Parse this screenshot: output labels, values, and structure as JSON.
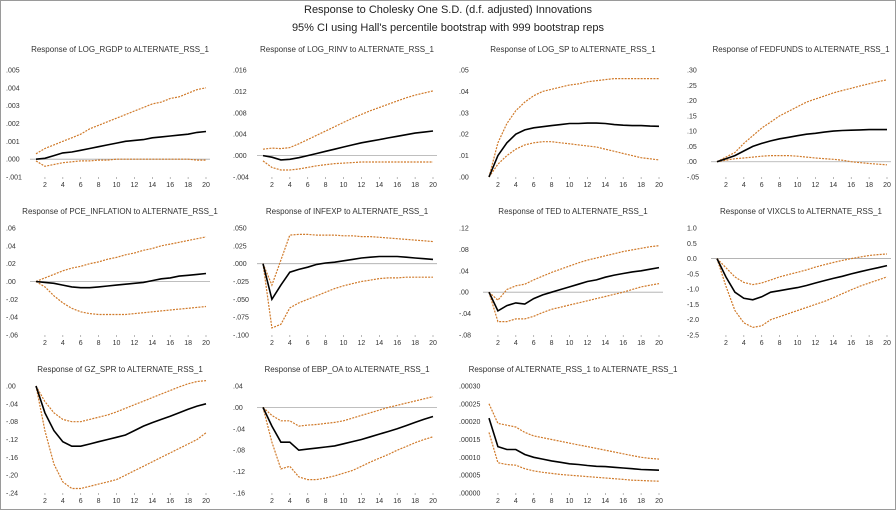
{
  "header": {
    "title": "Response to Cholesky One S.D. (d.f. adjusted) Innovations",
    "subtitle": "95% CI using Hall's percentile bootstrap with 999 bootstrap reps"
  },
  "colors": {
    "response": "#000000",
    "bands": "#d07a2a",
    "zero_line": "#aaaaaa",
    "text": "#333333"
  },
  "chart_data": [
    {
      "type": "line",
      "title": "Response of LOG_RGDP to ALTERNATE_RSS_1",
      "ylim": [
        -0.001,
        0.005
      ],
      "yticks": [
        ".005",
        ".004",
        ".003",
        ".002",
        ".001",
        ".000",
        "-.001"
      ],
      "ytick_values": [
        0.005,
        0.004,
        0.003,
        0.002,
        0.001,
        0.0,
        -0.001
      ],
      "xticks": [
        "2",
        "4",
        "6",
        "8",
        "10",
        "12",
        "14",
        "16",
        "18",
        "20"
      ],
      "response": [
        0.0,
        5e-05,
        0.0002,
        0.00035,
        0.0004,
        0.0005,
        0.0006,
        0.0007,
        0.0008,
        0.0009,
        0.001,
        0.00105,
        0.0011,
        0.0012,
        0.00125,
        0.0013,
        0.00135,
        0.0014,
        0.0015,
        0.00155
      ],
      "upper": [
        0.0003,
        0.0006,
        0.0008,
        0.001,
        0.0012,
        0.0014,
        0.0017,
        0.0019,
        0.0021,
        0.0023,
        0.0025,
        0.0027,
        0.0029,
        0.0031,
        0.0032,
        0.0034,
        0.0035,
        0.0037,
        0.0039,
        0.004
      ],
      "lower": [
        -0.0001,
        -0.0004,
        -0.0003,
        -0.0002,
        -0.00015,
        -0.0001,
        -0.0001,
        -5e-05,
        -5e-05,
        0.0,
        0.0,
        0.0,
        0.0,
        0.0,
        0.0,
        0.0,
        0.0,
        0.0,
        -5e-05,
        -5e-05
      ]
    },
    {
      "type": "line",
      "title": "Response of LOG_RINV to ALTERNATE_RSS_1",
      "ylim": [
        -0.004,
        0.016
      ],
      "yticks": [
        ".016",
        ".012",
        ".008",
        ".004",
        ".000",
        "-.004"
      ],
      "ytick_values": [
        0.016,
        0.012,
        0.008,
        0.004,
        0.0,
        -0.004
      ],
      "xticks": [
        "2",
        "4",
        "6",
        "8",
        "10",
        "12",
        "14",
        "16",
        "18",
        "20"
      ],
      "response": [
        0.0,
        -0.0003,
        -0.0008,
        -0.0007,
        -0.0004,
        0.0,
        0.0004,
        0.0008,
        0.0012,
        0.0016,
        0.002,
        0.0024,
        0.0027,
        0.003,
        0.0033,
        0.0036,
        0.0039,
        0.0042,
        0.0044,
        0.0046
      ],
      "upper": [
        0.0012,
        0.0014,
        0.0013,
        0.0015,
        0.0022,
        0.003,
        0.0038,
        0.0046,
        0.0054,
        0.0062,
        0.007,
        0.0077,
        0.0084,
        0.009,
        0.0096,
        0.0102,
        0.0108,
        0.0113,
        0.0117,
        0.0121
      ],
      "lower": [
        -0.001,
        -0.0022,
        -0.0027,
        -0.0027,
        -0.0025,
        -0.0022,
        -0.0019,
        -0.0017,
        -0.0015,
        -0.0014,
        -0.0013,
        -0.0012,
        -0.0012,
        -0.0012,
        -0.0012,
        -0.0012,
        -0.0012,
        -0.0012,
        -0.0012,
        -0.0012
      ]
    },
    {
      "type": "line",
      "title": "Response of LOG_SP to ALTERNATE_RSS_1",
      "ylim": [
        0.0,
        0.05
      ],
      "yticks": [
        ".05",
        ".04",
        ".03",
        ".02",
        ".01",
        ".00"
      ],
      "ytick_values": [
        0.05,
        0.04,
        0.03,
        0.02,
        0.01,
        0.0
      ],
      "xticks": [
        "2",
        "4",
        "6",
        "8",
        "10",
        "12",
        "14",
        "16",
        "18",
        "20"
      ],
      "response": [
        0.0,
        0.01,
        0.016,
        0.02,
        0.022,
        0.023,
        0.0235,
        0.024,
        0.0245,
        0.025,
        0.025,
        0.0252,
        0.0252,
        0.025,
        0.0245,
        0.0242,
        0.024,
        0.024,
        0.0238,
        0.0237
      ],
      "upper": [
        0.0,
        0.016,
        0.025,
        0.031,
        0.035,
        0.038,
        0.04,
        0.041,
        0.042,
        0.043,
        0.0435,
        0.0445,
        0.045,
        0.0455,
        0.046,
        0.046,
        0.046,
        0.046,
        0.046,
        0.046
      ],
      "lower": [
        0.0,
        0.006,
        0.01,
        0.013,
        0.015,
        0.016,
        0.0165,
        0.0165,
        0.016,
        0.0155,
        0.015,
        0.0145,
        0.014,
        0.013,
        0.012,
        0.011,
        0.01,
        0.009,
        0.0085,
        0.008
      ]
    },
    {
      "type": "line",
      "title": "Response of FEDFUNDS to ALTERNATE_RSS_1",
      "ylim": [
        -0.05,
        0.3
      ],
      "yticks": [
        ".30",
        ".25",
        ".20",
        ".15",
        ".10",
        ".05",
        ".00",
        "-.05"
      ],
      "ytick_values": [
        0.3,
        0.25,
        0.2,
        0.15,
        0.1,
        0.05,
        0.0,
        -0.05
      ],
      "xticks": [
        "2",
        "4",
        "6",
        "8",
        "10",
        "12",
        "14",
        "16",
        "18",
        "20"
      ],
      "response": [
        0.0,
        0.01,
        0.02,
        0.035,
        0.05,
        0.06,
        0.068,
        0.075,
        0.08,
        0.085,
        0.09,
        0.093,
        0.097,
        0.1,
        0.102,
        0.103,
        0.104,
        0.105,
        0.105,
        0.105
      ],
      "upper": [
        0.0,
        0.015,
        0.03,
        0.06,
        0.085,
        0.11,
        0.13,
        0.15,
        0.165,
        0.18,
        0.195,
        0.205,
        0.215,
        0.225,
        0.233,
        0.24,
        0.248,
        0.255,
        0.262,
        0.268
      ],
      "lower": [
        0.0,
        0.005,
        0.01,
        0.012,
        0.015,
        0.018,
        0.02,
        0.02,
        0.02,
        0.018,
        0.015,
        0.012,
        0.01,
        0.008,
        0.005,
        0.0,
        -0.003,
        -0.006,
        -0.008,
        -0.01
      ]
    },
    {
      "type": "line",
      "title": "Response of PCE_INFLATION to ALTERNATE_RSS_1",
      "ylim": [
        -0.06,
        0.06
      ],
      "yticks": [
        ".06",
        ".04",
        ".02",
        ".00",
        "-.02",
        "-.04",
        "-.06"
      ],
      "ytick_values": [
        0.06,
        0.04,
        0.02,
        0.0,
        -0.02,
        -0.04,
        -0.06
      ],
      "xticks": [
        "2",
        "4",
        "6",
        "8",
        "10",
        "12",
        "14",
        "16",
        "18",
        "20"
      ],
      "response": [
        0.0,
        -0.001,
        -0.002,
        -0.004,
        -0.006,
        -0.007,
        -0.007,
        -0.006,
        -0.005,
        -0.004,
        -0.003,
        -0.002,
        -0.001,
        0.001,
        0.003,
        0.004,
        0.006,
        0.007,
        0.008,
        0.009
      ],
      "upper": [
        0.0,
        0.004,
        0.008,
        0.012,
        0.015,
        0.017,
        0.02,
        0.022,
        0.025,
        0.027,
        0.03,
        0.032,
        0.035,
        0.037,
        0.04,
        0.042,
        0.044,
        0.046,
        0.048,
        0.05
      ],
      "lower": [
        0.0,
        -0.006,
        -0.016,
        -0.024,
        -0.03,
        -0.034,
        -0.036,
        -0.037,
        -0.037,
        -0.037,
        -0.037,
        -0.036,
        -0.035,
        -0.034,
        -0.033,
        -0.032,
        -0.031,
        -0.03,
        -0.029,
        -0.028
      ]
    },
    {
      "type": "line",
      "title": "Response of INFEXP to ALTERNATE_RSS_1",
      "ylim": [
        -0.1,
        0.05
      ],
      "yticks": [
        ".050",
        ".025",
        ".000",
        "-.025",
        "-.050",
        "-.075",
        "-.100"
      ],
      "ytick_values": [
        0.05,
        0.025,
        0.0,
        -0.025,
        -0.05,
        -0.075,
        -0.1
      ],
      "xticks": [
        "2",
        "4",
        "6",
        "8",
        "10",
        "12",
        "14",
        "16",
        "18",
        "20"
      ],
      "response": [
        0.0,
        -0.05,
        -0.03,
        -0.012,
        -0.008,
        -0.005,
        -0.001,
        0.001,
        0.002,
        0.004,
        0.006,
        0.008,
        0.009,
        0.01,
        0.01,
        0.01,
        0.009,
        0.008,
        0.007,
        0.006
      ],
      "upper": [
        0.0,
        -0.03,
        0.005,
        0.04,
        0.041,
        0.041,
        0.04,
        0.04,
        0.04,
        0.039,
        0.039,
        0.038,
        0.038,
        0.037,
        0.036,
        0.035,
        0.034,
        0.033,
        0.032,
        0.031
      ],
      "lower": [
        0.0,
        -0.09,
        -0.085,
        -0.062,
        -0.055,
        -0.05,
        -0.045,
        -0.04,
        -0.035,
        -0.031,
        -0.028,
        -0.025,
        -0.023,
        -0.021,
        -0.02,
        -0.02,
        -0.019,
        -0.019,
        -0.019,
        -0.019
      ]
    },
    {
      "type": "line",
      "title": "Response of TED to ALTERNATE_RSS_1",
      "ylim": [
        -0.08,
        0.12
      ],
      "yticks": [
        ".12",
        ".08",
        ".04",
        ".00",
        "-.04",
        "-.08"
      ],
      "ytick_values": [
        0.12,
        0.08,
        0.04,
        0.0,
        -0.04,
        -0.08
      ],
      "xticks": [
        "2",
        "4",
        "6",
        "8",
        "10",
        "12",
        "14",
        "16",
        "18",
        "20"
      ],
      "response": [
        0.0,
        -0.035,
        -0.025,
        -0.02,
        -0.022,
        -0.012,
        -0.005,
        0.0,
        0.005,
        0.01,
        0.015,
        0.02,
        0.023,
        0.028,
        0.032,
        0.035,
        0.038,
        0.04,
        0.043,
        0.046
      ],
      "upper": [
        0.0,
        -0.015,
        0.005,
        0.012,
        0.015,
        0.023,
        0.03,
        0.037,
        0.043,
        0.049,
        0.055,
        0.06,
        0.064,
        0.068,
        0.072,
        0.076,
        0.079,
        0.082,
        0.085,
        0.087
      ],
      "lower": [
        0.0,
        -0.055,
        -0.055,
        -0.05,
        -0.05,
        -0.045,
        -0.038,
        -0.032,
        -0.028,
        -0.024,
        -0.02,
        -0.016,
        -0.012,
        -0.008,
        -0.004,
        0.0,
        0.005,
        0.01,
        0.013,
        0.016
      ]
    },
    {
      "type": "line",
      "title": "Response of VIXCLS to ALTERNATE_RSS_1",
      "ylim": [
        -2.5,
        1.0
      ],
      "yticks": [
        "1.0",
        "0.5",
        "0.0",
        "-0.5",
        "-1.0",
        "-1.5",
        "-2.0",
        "-2.5"
      ],
      "ytick_values": [
        1.0,
        0.5,
        0.0,
        -0.5,
        -1.0,
        -1.5,
        -2.0,
        -2.5
      ],
      "xticks": [
        "2",
        "4",
        "6",
        "8",
        "10",
        "12",
        "14",
        "16",
        "18",
        "20"
      ],
      "response": [
        0.0,
        -0.6,
        -1.1,
        -1.3,
        -1.35,
        -1.25,
        -1.1,
        -1.05,
        -1.0,
        -0.95,
        -0.88,
        -0.8,
        -0.72,
        -0.65,
        -0.58,
        -0.5,
        -0.43,
        -0.36,
        -0.3,
        -0.23
      ],
      "upper": [
        0.0,
        -0.3,
        -0.6,
        -0.78,
        -0.85,
        -0.8,
        -0.7,
        -0.6,
        -0.52,
        -0.45,
        -0.37,
        -0.28,
        -0.2,
        -0.13,
        -0.06,
        0.0,
        0.05,
        0.1,
        0.13,
        0.15
      ],
      "lower": [
        0.0,
        -0.9,
        -1.7,
        -2.1,
        -2.25,
        -2.2,
        -2.0,
        -1.9,
        -1.8,
        -1.7,
        -1.6,
        -1.5,
        -1.4,
        -1.28,
        -1.15,
        -1.02,
        -0.9,
        -0.8,
        -0.7,
        -0.6
      ]
    },
    {
      "type": "line",
      "title": "Response of GZ_SPR to ALTERNATE_RSS_1",
      "ylim": [
        -0.24,
        0.0
      ],
      "yticks": [
        ".00",
        "-.04",
        "-.08",
        "-.12",
        "-.16",
        "-.20",
        "-.24"
      ],
      "ytick_values": [
        0.0,
        -0.04,
        -0.08,
        -0.12,
        -0.16,
        -0.2,
        -0.24
      ],
      "xticks": [
        "2",
        "4",
        "6",
        "8",
        "10",
        "12",
        "14",
        "16",
        "18",
        "20"
      ],
      "response": [
        0.0,
        -0.06,
        -0.1,
        -0.125,
        -0.135,
        -0.135,
        -0.13,
        -0.125,
        -0.12,
        -0.115,
        -0.11,
        -0.1,
        -0.09,
        -0.082,
        -0.075,
        -0.068,
        -0.06,
        -0.052,
        -0.045,
        -0.04
      ],
      "upper": [
        0.0,
        -0.035,
        -0.06,
        -0.075,
        -0.08,
        -0.08,
        -0.075,
        -0.07,
        -0.065,
        -0.058,
        -0.05,
        -0.042,
        -0.034,
        -0.026,
        -0.018,
        -0.01,
        -0.002,
        0.005,
        0.01,
        0.012
      ],
      "lower": [
        0.0,
        -0.1,
        -0.175,
        -0.215,
        -0.23,
        -0.23,
        -0.225,
        -0.22,
        -0.215,
        -0.21,
        -0.2,
        -0.19,
        -0.18,
        -0.17,
        -0.16,
        -0.15,
        -0.14,
        -0.13,
        -0.12,
        -0.105
      ]
    },
    {
      "type": "line",
      "title": "Response of EBP_OA to ALTERNATE_RSS_1",
      "ylim": [
        -0.16,
        0.04
      ],
      "yticks": [
        ".04",
        ".00",
        "-.04",
        "-.08",
        "-.12",
        "-.16"
      ],
      "ytick_values": [
        0.04,
        0.0,
        -0.04,
        -0.08,
        -0.12,
        -0.16
      ],
      "xticks": [
        "2",
        "4",
        "6",
        "8",
        "10",
        "12",
        "14",
        "16",
        "18",
        "20"
      ],
      "response": [
        0.0,
        -0.035,
        -0.065,
        -0.065,
        -0.08,
        -0.078,
        -0.076,
        -0.074,
        -0.072,
        -0.068,
        -0.064,
        -0.06,
        -0.055,
        -0.05,
        -0.045,
        -0.04,
        -0.034,
        -0.028,
        -0.022,
        -0.017
      ],
      "upper": [
        0.0,
        -0.015,
        -0.025,
        -0.025,
        -0.035,
        -0.033,
        -0.032,
        -0.03,
        -0.028,
        -0.025,
        -0.02,
        -0.015,
        -0.01,
        -0.005,
        0.0,
        0.004,
        0.008,
        0.012,
        0.016,
        0.02
      ],
      "lower": [
        0.0,
        -0.065,
        -0.115,
        -0.11,
        -0.13,
        -0.135,
        -0.135,
        -0.132,
        -0.128,
        -0.123,
        -0.118,
        -0.11,
        -0.102,
        -0.095,
        -0.088,
        -0.08,
        -0.073,
        -0.066,
        -0.06,
        -0.055
      ]
    },
    {
      "type": "line",
      "title": "Response of ALTERNATE_RSS_1 to ALTERNATE_RSS_1",
      "ylim": [
        0.0,
        0.0003
      ],
      "yticks": [
        ".00030",
        ".00025",
        ".00020",
        ".00015",
        ".00010",
        ".00005",
        ".00000"
      ],
      "ytick_values": [
        0.0003,
        0.00025,
        0.0002,
        0.00015,
        0.0001,
        5e-05,
        0.0
      ],
      "xticks": [
        "2",
        "4",
        "6",
        "8",
        "10",
        "12",
        "14",
        "16",
        "18",
        "20"
      ],
      "response": [
        0.00021,
        0.00013,
        0.000122,
        0.000122,
        0.000108,
        0.0001,
        9.5e-05,
        9e-05,
        8.6e-05,
        8.2e-05,
        8e-05,
        7.7e-05,
        7.5e-05,
        7.4e-05,
        7.2e-05,
        7e-05,
        6.8e-05,
        6.6e-05,
        6.5e-05,
        6.4e-05
      ],
      "upper": [
        0.00025,
        0.000195,
        0.00019,
        0.000185,
        0.00017,
        0.00016,
        0.000155,
        0.00015,
        0.000145,
        0.00014,
        0.000135,
        0.00013,
        0.000125,
        0.00012,
        0.000115,
        0.00011,
        0.000105,
        0.0001,
        9.7e-05,
        9.5e-05
      ],
      "lower": [
        0.00017,
        8.5e-05,
        8e-05,
        7.8e-05,
        6.8e-05,
        6.2e-05,
        5.8e-05,
        5.5e-05,
        5.2e-05,
        5e-05,
        4.8e-05,
        4.6e-05,
        4.4e-05,
        4.2e-05,
        4e-05,
        3.8e-05,
        3.6e-05,
        3.5e-05,
        3.4e-05,
        3.3e-05
      ]
    }
  ]
}
